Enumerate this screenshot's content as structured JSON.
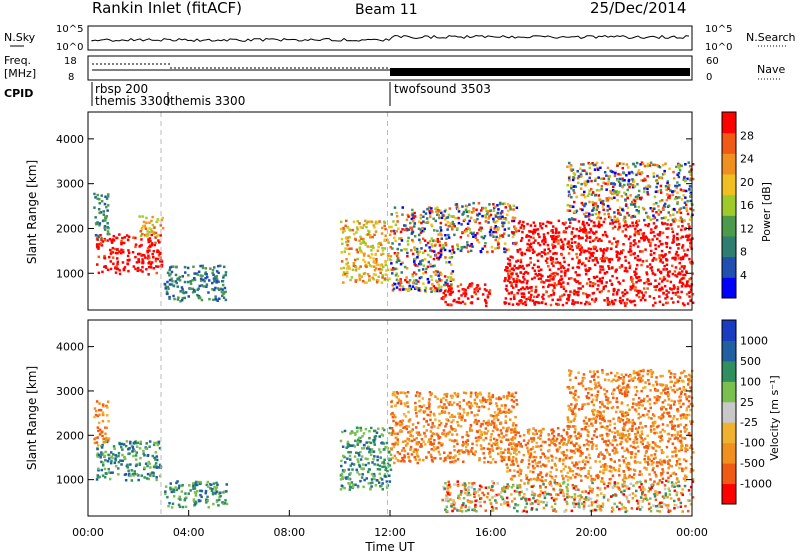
{
  "header": {
    "title": "Rankin Inlet (fitACF)",
    "beam": "Beam 11",
    "date": "25/Dec/2014"
  },
  "strip_panels": {
    "nsky": {
      "label": "N.Sky",
      "yticks": [
        "10^5",
        "10^0"
      ]
    },
    "nsearch": {
      "label": "N.Search",
      "yticks": [
        "10^5",
        "10^0"
      ]
    },
    "freq": {
      "label_line1": "Freq.",
      "label_line2": "[MHz]",
      "yticks": [
        "18",
        "8"
      ]
    },
    "nave": {
      "label": "Nave",
      "yticks": [
        "60",
        "0"
      ]
    },
    "cpid": {
      "label": "CPID",
      "segments": [
        {
          "name": "rbsp 200",
          "start_hour": 0.2
        },
        {
          "name": "themis 3300",
          "start_hour": 0.2
        },
        {
          "name": "themis 3300",
          "start_hour": 2.9
        },
        {
          "name": "twofsound 3503",
          "start_hour": 11.9
        }
      ]
    }
  },
  "chart_data": [
    {
      "type": "heatmap",
      "name": "power",
      "ylabel": "Slant Range [km]",
      "ylim": [
        180,
        4600
      ],
      "yticks": [
        1000,
        2000,
        3000,
        4000
      ],
      "xlim": [
        0,
        24
      ],
      "colorbar": {
        "label": "Power [dB]",
        "ticks": [
          "28",
          "24",
          "20",
          "16",
          "12",
          "8",
          "4"
        ],
        "colors": [
          "#0000ff",
          "#1f4fb0",
          "#2f7f70",
          "#4c9a4c",
          "#9ecb2a",
          "#f0c020",
          "#f0901e",
          "#f05a14",
          "#ff0000"
        ]
      },
      "regions": [
        {
          "t0": 0.3,
          "t1": 2.9,
          "r0": 1000,
          "r1": 1900,
          "level": "high"
        },
        {
          "t0": 0.2,
          "t1": 0.8,
          "r0": 1800,
          "r1": 2800,
          "level": "low"
        },
        {
          "t0": 2.0,
          "t1": 3.0,
          "r0": 1800,
          "r1": 2300,
          "level": "mid"
        },
        {
          "t0": 3.0,
          "t1": 5.5,
          "r0": 400,
          "r1": 1200,
          "level": "low"
        },
        {
          "t0": 10.0,
          "t1": 12.0,
          "r0": 800,
          "r1": 2200,
          "level": "mid"
        },
        {
          "t0": 12.0,
          "t1": 14.5,
          "r0": 600,
          "r1": 2500,
          "level": "mix"
        },
        {
          "t0": 14.0,
          "t1": 16.0,
          "r0": 300,
          "r1": 800,
          "level": "high"
        },
        {
          "t0": 14.5,
          "t1": 17.0,
          "r0": 1500,
          "r1": 2600,
          "level": "mix"
        },
        {
          "t0": 16.5,
          "t1": 24.0,
          "r0": 300,
          "r1": 1400,
          "level": "high"
        },
        {
          "t0": 17.0,
          "t1": 24.0,
          "r0": 1400,
          "r1": 2200,
          "level": "high"
        },
        {
          "t0": 19.0,
          "t1": 24.0,
          "r0": 2200,
          "r1": 3500,
          "level": "mix"
        }
      ]
    },
    {
      "type": "heatmap",
      "name": "velocity",
      "ylabel": "Slant Range [km]",
      "xlabel": "Time UT",
      "ylim": [
        180,
        4600
      ],
      "yticks": [
        1000,
        2000,
        3000,
        4000
      ],
      "xlim": [
        0,
        24
      ],
      "xticks": [
        "00:00",
        "04:00",
        "08:00",
        "12:00",
        "16:00",
        "20:00",
        "00:00"
      ],
      "colorbar": {
        "label": "Velocity [m s⁻¹]",
        "ticks": [
          "1000",
          "500",
          "100",
          "25",
          "-25",
          "-100",
          "-500",
          "-1000"
        ],
        "colors": [
          "#ff0000",
          "#f05a14",
          "#f0901e",
          "#f0b030",
          "#c8c8c8",
          "#7ac050",
          "#2f8f5f",
          "#2060a0",
          "#1a3cc0"
        ]
      },
      "regions": [
        {
          "t0": 0.3,
          "t1": 2.9,
          "r0": 1000,
          "r1": 1900,
          "level": "green"
        },
        {
          "t0": 0.2,
          "t1": 0.8,
          "r0": 1800,
          "r1": 2800,
          "level": "orange"
        },
        {
          "t0": 3.0,
          "t1": 5.5,
          "r0": 400,
          "r1": 1000,
          "level": "green"
        },
        {
          "t0": 10.0,
          "t1": 12.0,
          "r0": 800,
          "r1": 2200,
          "level": "green"
        },
        {
          "t0": 12.0,
          "t1": 17.0,
          "r0": 1400,
          "r1": 3000,
          "level": "orange"
        },
        {
          "t0": 14.0,
          "t1": 24.0,
          "r0": 300,
          "r1": 1000,
          "level": "mix"
        },
        {
          "t0": 16.5,
          "t1": 24.0,
          "r0": 1000,
          "r1": 2200,
          "level": "orange"
        },
        {
          "t0": 19.0,
          "t1": 24.0,
          "r0": 2200,
          "r1": 3500,
          "level": "orange"
        }
      ]
    }
  ]
}
